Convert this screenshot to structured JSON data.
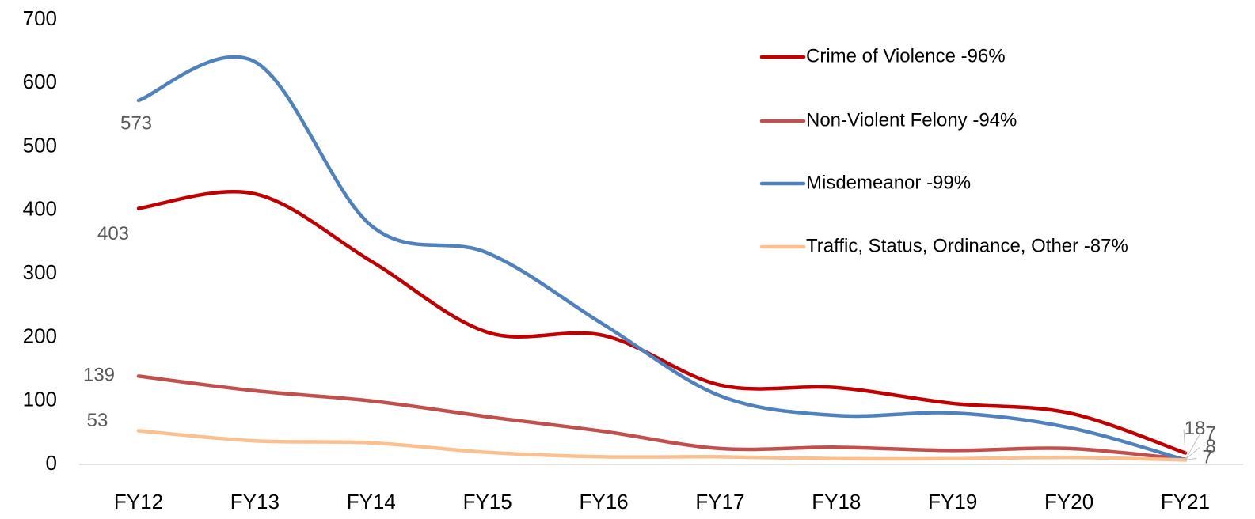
{
  "chart_data": {
    "type": "line",
    "categories": [
      "FY12",
      "FY13",
      "FY14",
      "FY15",
      "FY16",
      "FY17",
      "FY18",
      "FY19",
      "FY20",
      "FY21"
    ],
    "series": [
      {
        "name": "Crime of Violence -96%",
        "color": "#c00000",
        "values": [
          403,
          426,
          320,
          208,
          203,
          125,
          121,
          96,
          81,
          18
        ]
      },
      {
        "name": "Non-Violent Felony -94%",
        "color": "#c0504d",
        "values": [
          139,
          116,
          100,
          75,
          52,
          25,
          27,
          22,
          25,
          8
        ]
      },
      {
        "name": "Misdemeanor -99%",
        "color": "#4f81bd",
        "values": [
          573,
          634,
          376,
          333,
          220,
          108,
          77,
          81,
          58,
          7
        ]
      },
      {
        "name": "Traffic, Status, Ordinance, Other -87%",
        "color": "#fac090",
        "values": [
          53,
          37,
          34,
          19,
          12,
          12,
          9,
          9,
          11,
          7
        ]
      }
    ],
    "ylim": [
      0,
      700
    ],
    "yticks": [
      0,
      100,
      200,
      300,
      400,
      500,
      600,
      700
    ],
    "grid": false,
    "legend": "top-right"
  }
}
